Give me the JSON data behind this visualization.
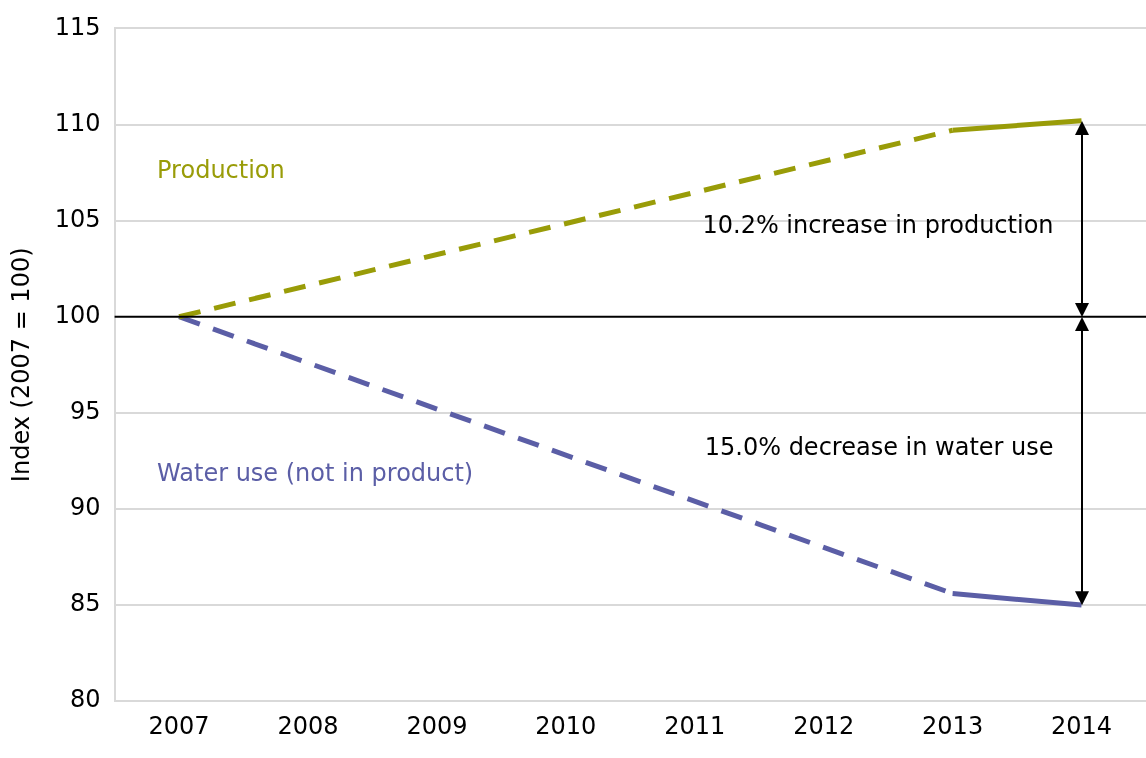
{
  "chart_data": {
    "type": "line",
    "categories": [
      "2007",
      "2008",
      "2009",
      "2010",
      "2011",
      "2012",
      "2013",
      "2014"
    ],
    "ylabel": "Index (2007 = 100)",
    "ylim": [
      80,
      115
    ],
    "yticks": [
      80,
      85,
      90,
      95,
      100,
      105,
      110,
      115
    ],
    "grid": "y",
    "legend": false,
    "marker": "none",
    "series": [
      {
        "name": "Production",
        "color": "#999c08",
        "line_style": "dashed",
        "values": [
          100,
          null,
          null,
          null,
          null,
          null,
          109.7,
          null
        ]
      },
      {
        "color": "#999c08",
        "line_style": "solid",
        "values": [
          null,
          null,
          null,
          null,
          null,
          null,
          109.7,
          110.2
        ]
      },
      {
        "name": "Water use (not in product)",
        "color": "#5b5ea6",
        "line_style": "dashed",
        "values": [
          100,
          null,
          null,
          null,
          null,
          null,
          85.6,
          null
        ]
      },
      {
        "color": "#5b5ea6",
        "line_style": "solid",
        "values": [
          null,
          null,
          null,
          null,
          null,
          null,
          85.6,
          85.0
        ]
      }
    ],
    "ref_lines": [
      {
        "axis": "y",
        "value": 100,
        "color": "#000000",
        "line_style": "solid"
      }
    ],
    "annotations": [
      "10.2% increase in production",
      "15.0% decrease in water use"
    ]
  }
}
